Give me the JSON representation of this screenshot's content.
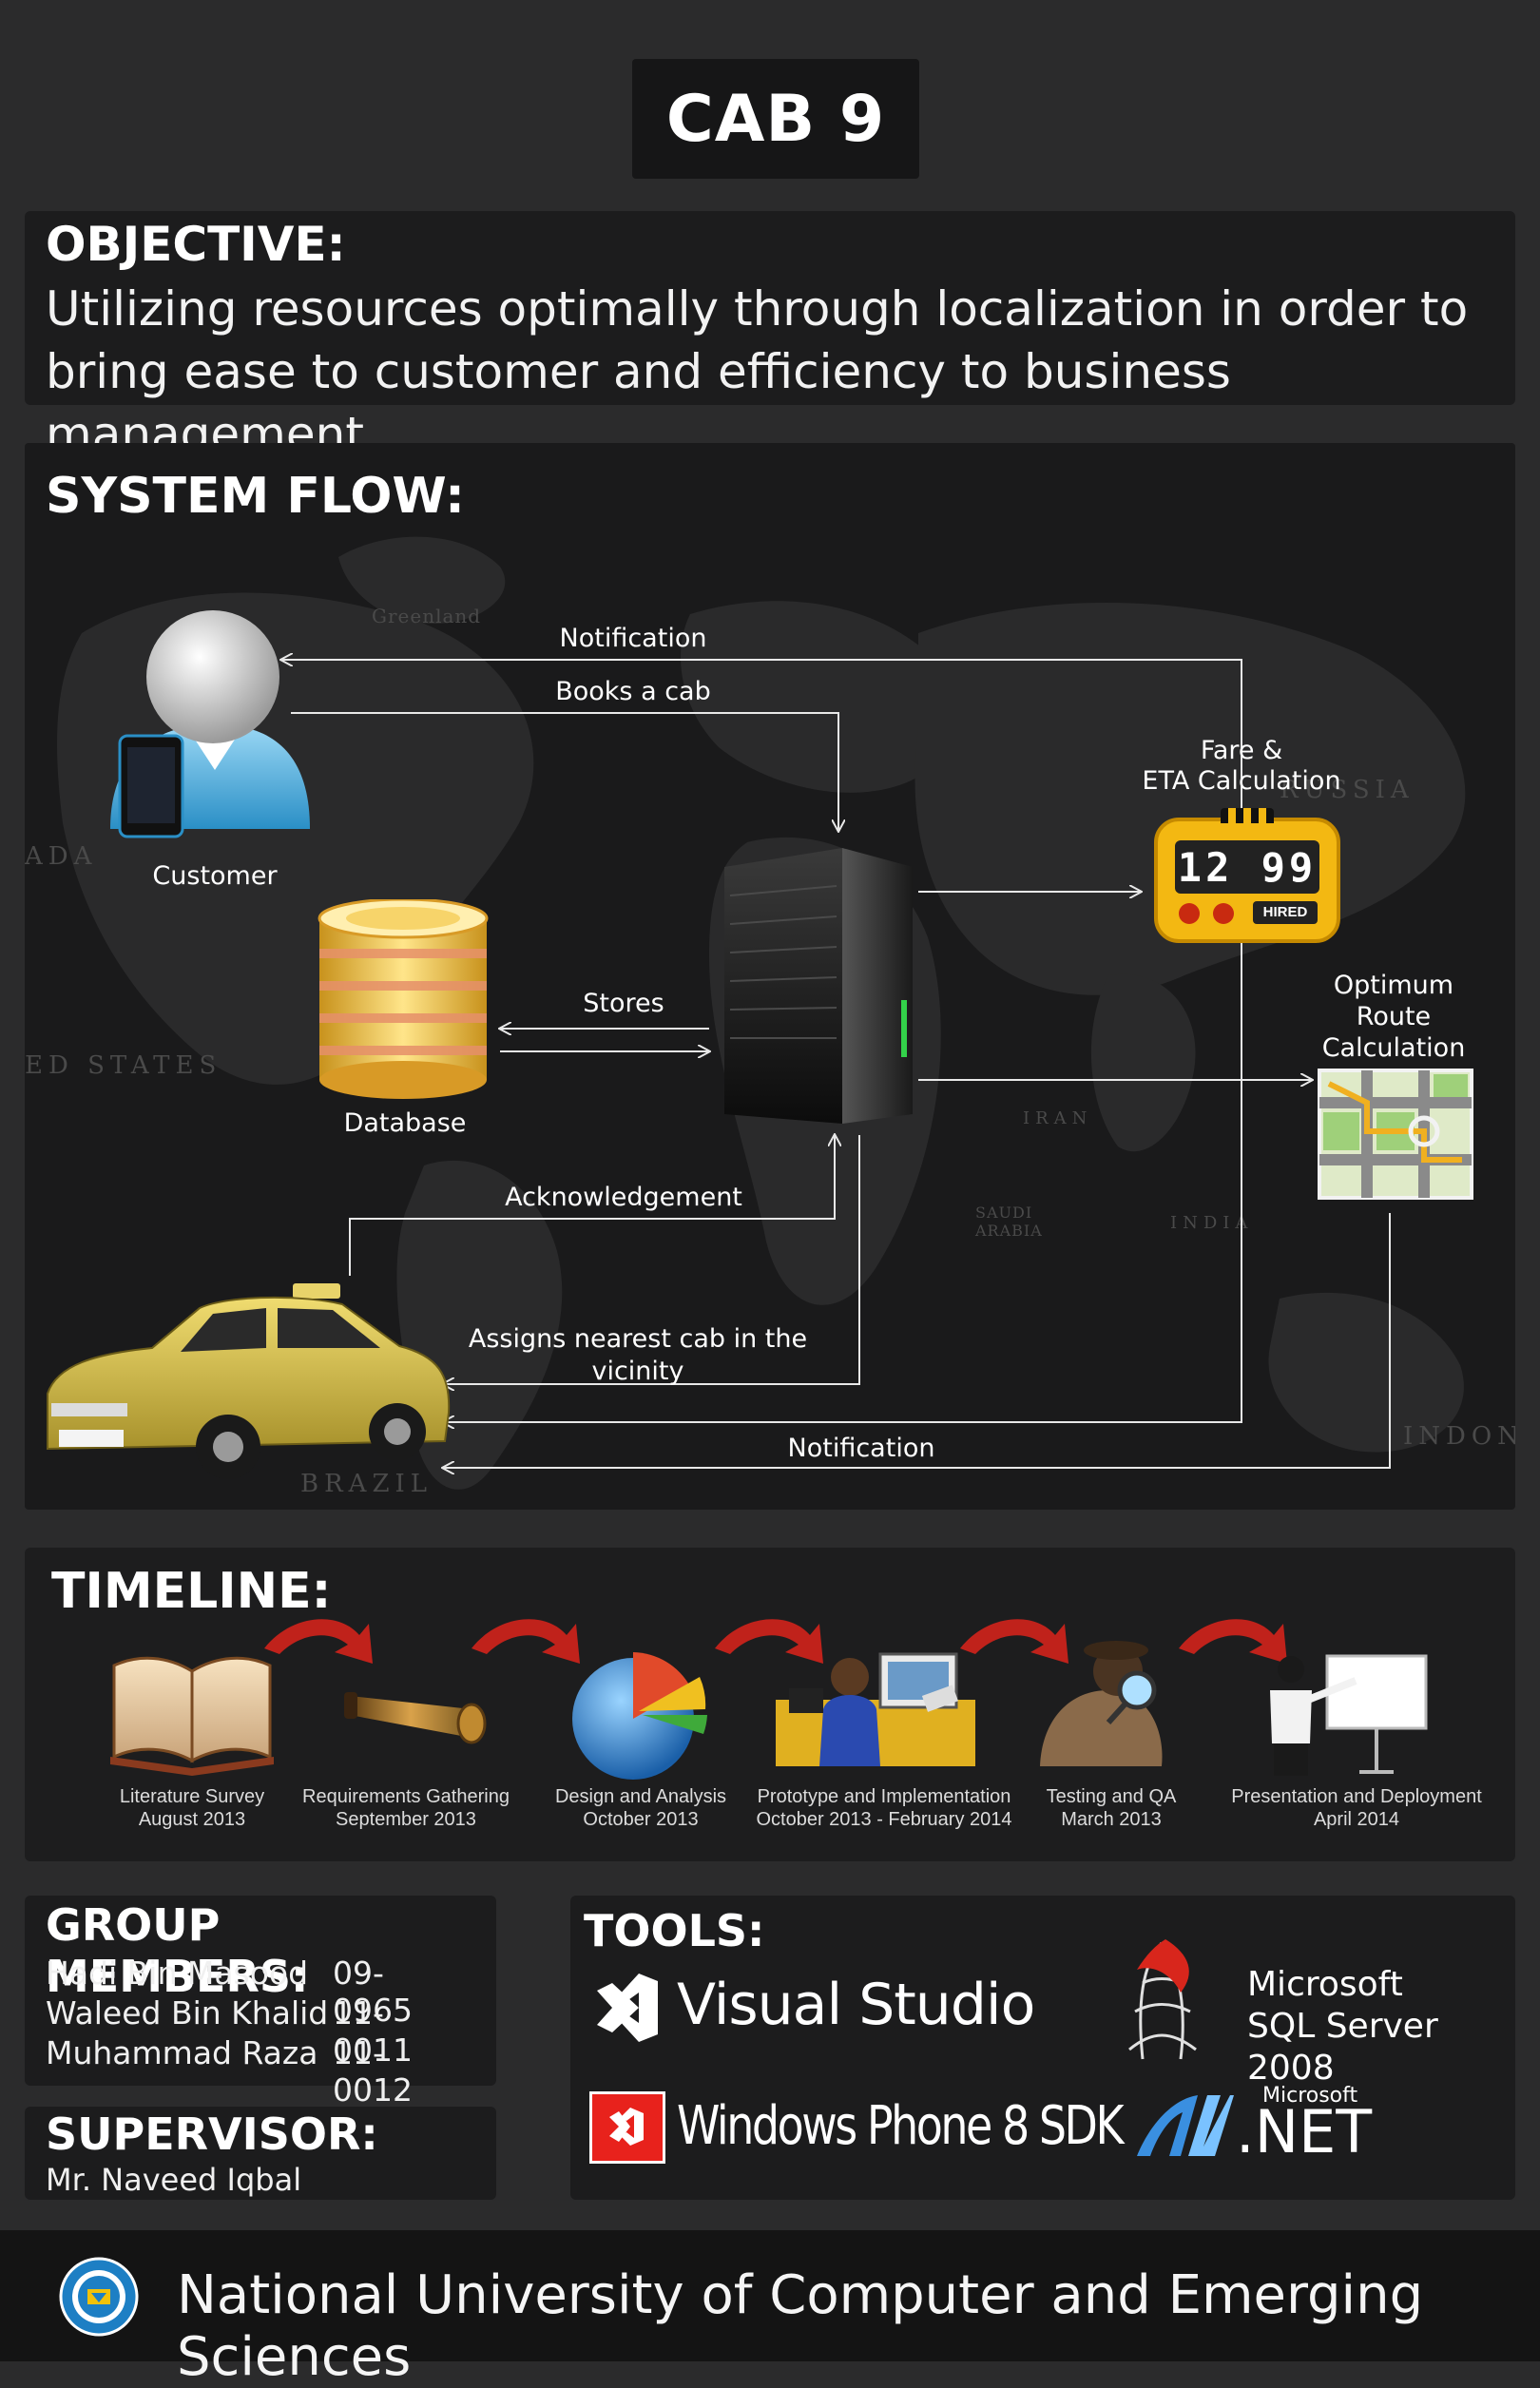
{
  "title": "CAB 9",
  "objective": {
    "heading": "OBJECTIVE:",
    "line1": "Utilizing resources optimally through localization in order to",
    "line2": "bring ease to customer and efficiency to business management."
  },
  "system_flow": {
    "heading": "SYSTEM FLOW:",
    "nodes": {
      "customer": "Customer",
      "database": "Database",
      "fare_line1": "Fare &",
      "fare_line2": "ETA Calculation",
      "route_line1": "Optimum",
      "route_line2": "Route",
      "route_line3": "Calculation",
      "meter_digits": "12 99",
      "meter_sign": "HIRED"
    },
    "edges": {
      "notification_top": "Notification",
      "books_cab": "Books a cab",
      "stores": "Stores",
      "acknowledgement": "Acknowledgement",
      "assigns_line1": "Assigns nearest cab in the",
      "assigns_line2": "vicinity",
      "notification_bottom": "Notification"
    },
    "map_labels": [
      "Greenland",
      "ADA",
      "ED STATES",
      "RUSSIA",
      "BRAZIL",
      "INDIA",
      "IRAN",
      "SAUDI ARABIA",
      "INDONES"
    ]
  },
  "timeline": {
    "heading": "TIMELINE:",
    "steps": [
      {
        "name": "Literature Survey",
        "date": "August 2013",
        "icon": "book-icon"
      },
      {
        "name": "Requirements Gathering",
        "date": "September 2013",
        "icon": "telescope-icon"
      },
      {
        "name": "Design and Analysis",
        "date": "October 2013",
        "icon": "pie-chart-icon"
      },
      {
        "name": "Prototype and Implementation",
        "date": "October 2013 - February 2014",
        "icon": "developer-icon"
      },
      {
        "name": "Testing and QA",
        "date": "March 2013",
        "icon": "detective-icon"
      },
      {
        "name": "Presentation and Deployment",
        "date": "April 2014",
        "icon": "presenter-icon"
      }
    ]
  },
  "group_members": {
    "heading": "GROUP MEMBERS:",
    "members": [
      {
        "name": "Hadi Bin Masood",
        "id": "09-0965"
      },
      {
        "name": "Waleed Bin Khalid",
        "id": "11-0011"
      },
      {
        "name": "Muhammad Raza",
        "id": "11-0012"
      }
    ]
  },
  "supervisor": {
    "heading": "SUPERVISOR:",
    "name": "Mr. Naveed Iqbal"
  },
  "tools": {
    "heading": "TOOLS:",
    "visual_studio": "Visual Studio",
    "wp_sdk": "Windows Phone 8 SDK",
    "sql_line1": "Microsoft",
    "sql_line2": "SQL Server 2008",
    "net_brand": "Microsoft",
    "net_name": ".NET"
  },
  "footer": {
    "university": "National University of Computer and Emerging Sciences"
  },
  "colors": {
    "background": "#2b2b2c",
    "panel": "#1c1c1d",
    "arrow": "#e8e8e8",
    "timeline_arrow": "#c0221b",
    "taxi_yellow": "#d8c24a"
  }
}
